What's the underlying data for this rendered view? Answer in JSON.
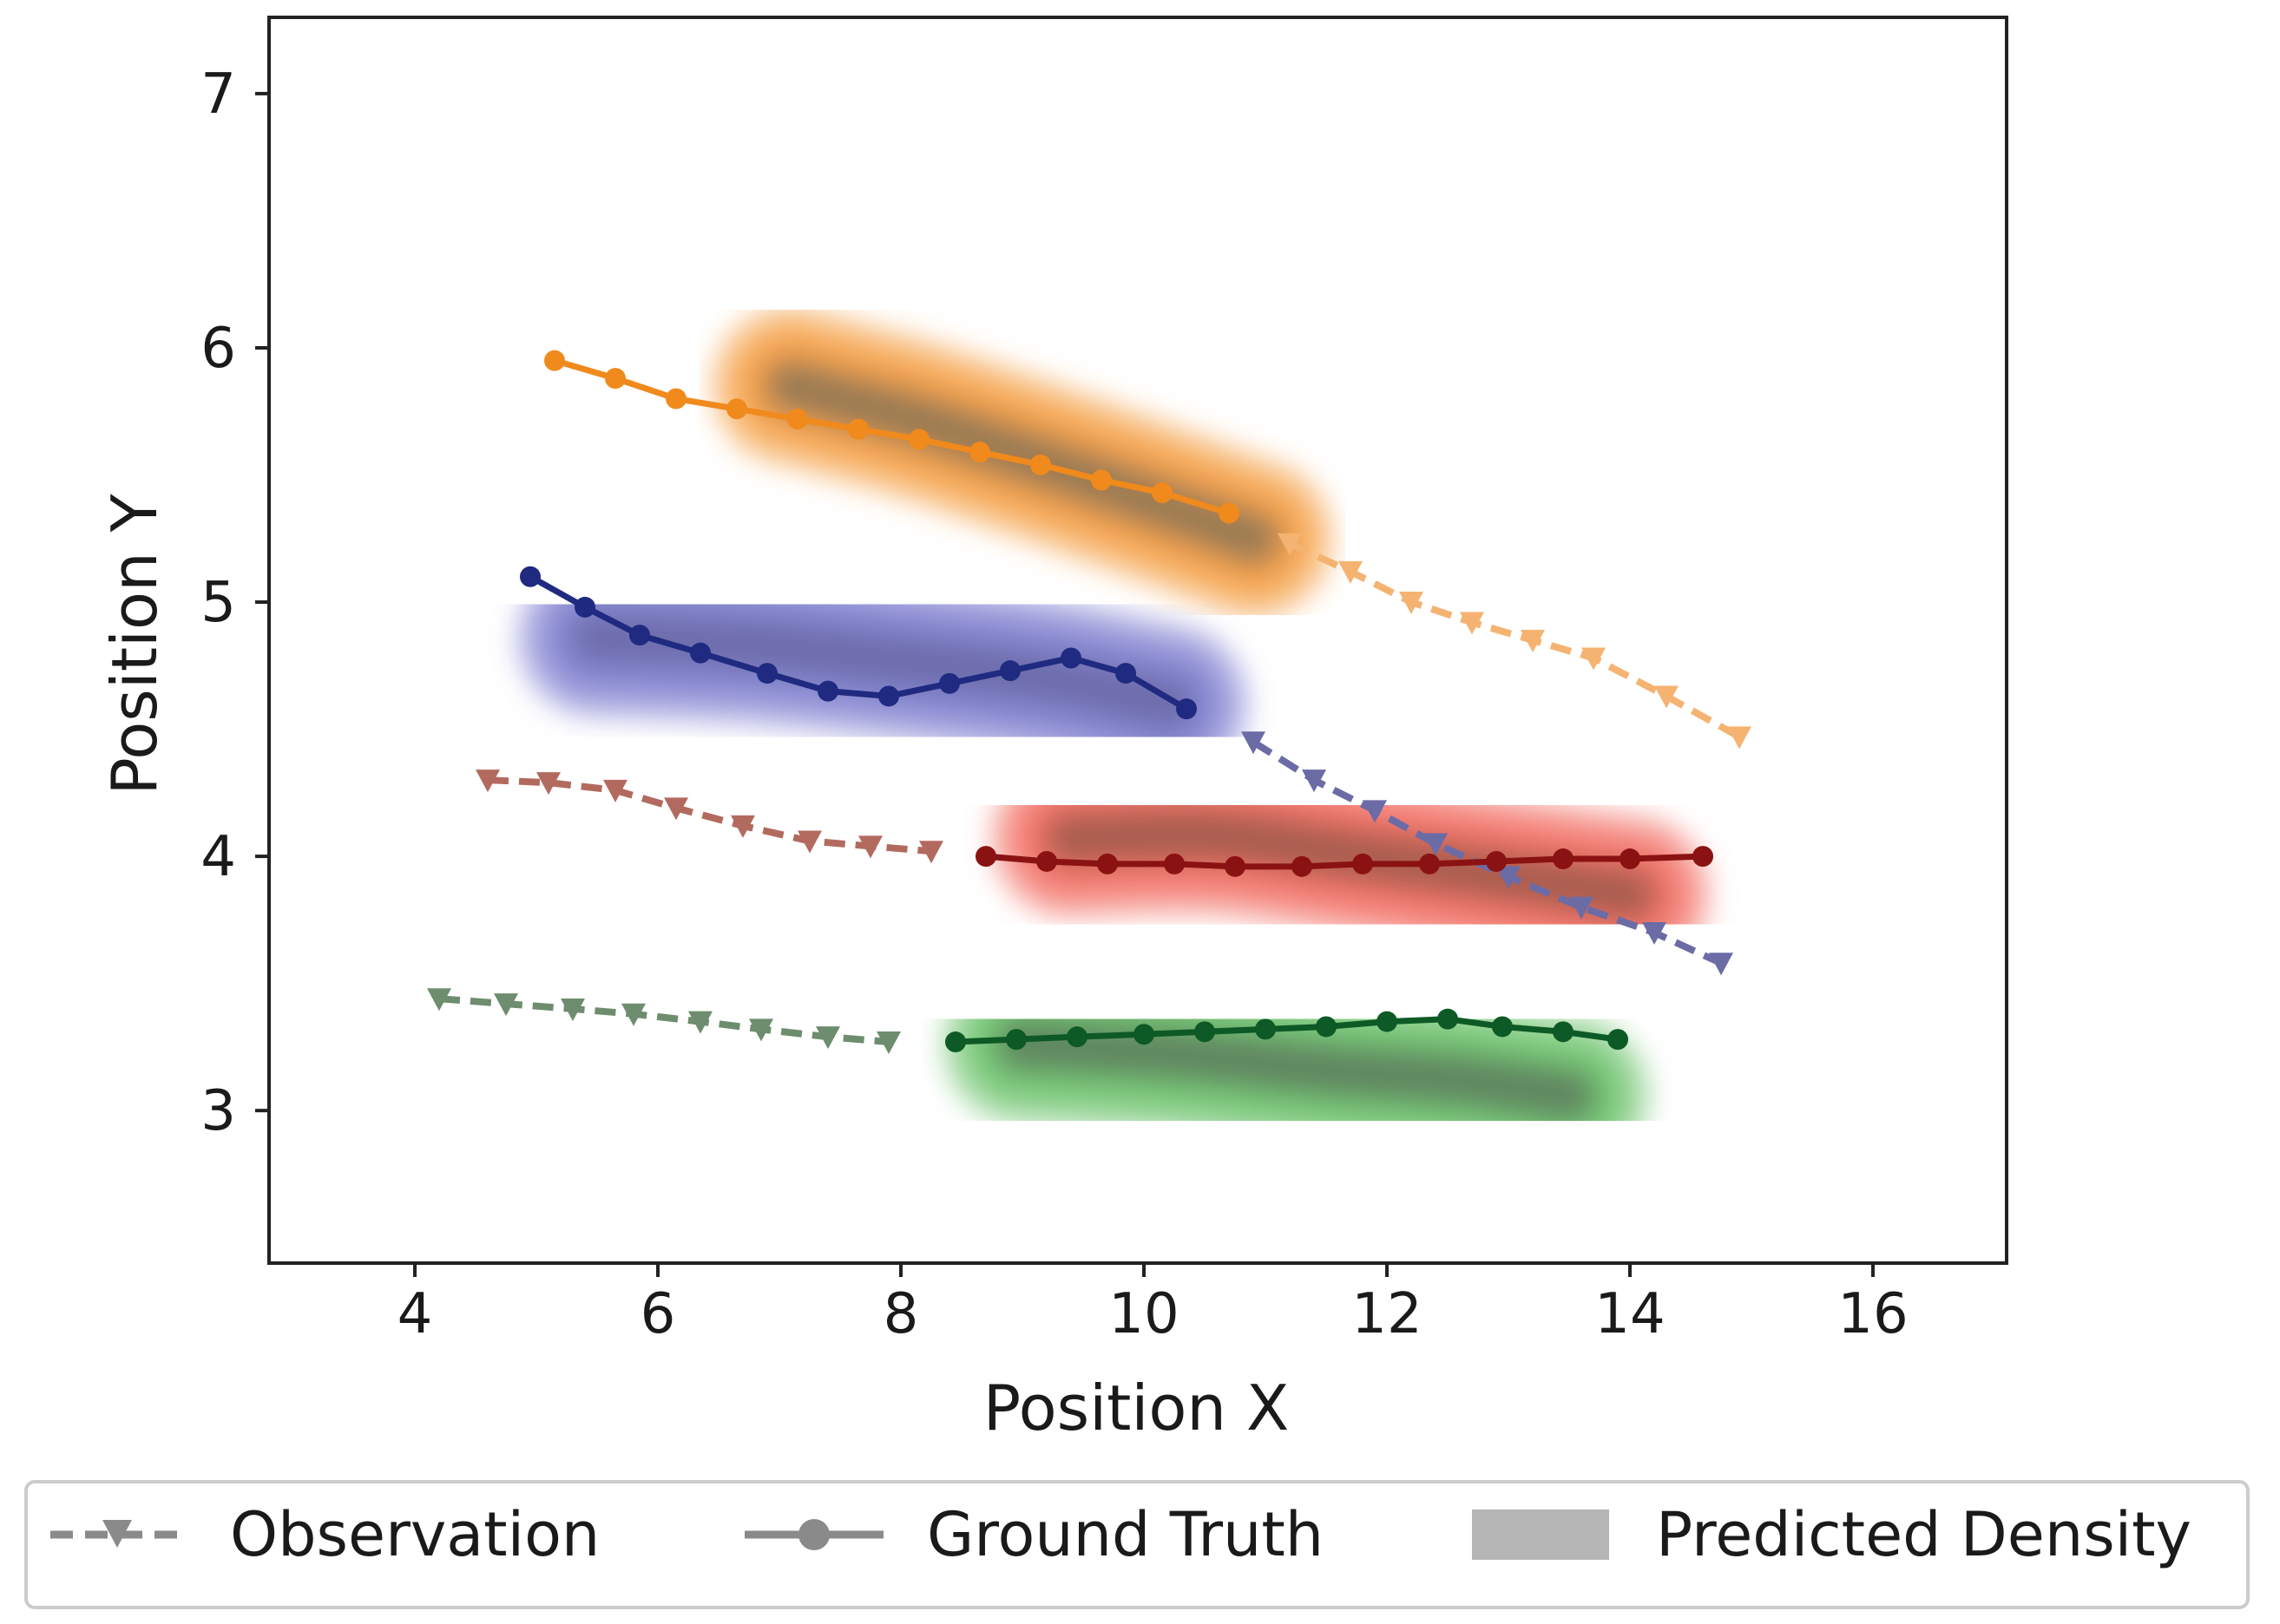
{
  "chart_data": {
    "type": "line",
    "title": "",
    "xlabel": "Position X",
    "ylabel": "Position Y",
    "xlim": [
      2.8,
      17.1
    ],
    "ylim": [
      2.4,
      7.3
    ],
    "xticks": [
      4,
      6,
      8,
      10,
      12,
      14,
      16
    ],
    "yticks": [
      3,
      4,
      5,
      6,
      7
    ],
    "grid": false,
    "legend": {
      "position": "bottom-outside",
      "entries": [
        {
          "label": "Observation",
          "style": "dashed-triangle",
          "color": "#8a8a8a"
        },
        {
          "label": "Ground Truth",
          "style": "solid-circle",
          "color": "#8a8a8a"
        },
        {
          "label": "Predicted Density",
          "style": "patch",
          "color": "#b5b5b5"
        }
      ]
    },
    "agents": [
      {
        "name": "orange",
        "obs_color": "#f5b371",
        "gt_color": "#f08a1c",
        "density_color": "#f59a3a",
        "density_dark": "#8a7455",
        "observation": {
          "x": [
            11.2,
            11.7,
            12.2,
            12.7,
            13.2,
            13.7,
            14.3,
            14.9
          ],
          "y": [
            5.23,
            5.12,
            5.0,
            4.92,
            4.85,
            4.78,
            4.63,
            4.47
          ]
        },
        "ground_truth": {
          "x": [
            5.15,
            5.65,
            6.15,
            6.65,
            7.15,
            7.65,
            8.15,
            8.65,
            9.15,
            9.65,
            10.15,
            10.7
          ],
          "y": [
            5.95,
            5.88,
            5.8,
            5.76,
            5.72,
            5.68,
            5.64,
            5.59,
            5.54,
            5.48,
            5.43,
            5.35
          ]
        },
        "density_ridge": {
          "x": [
            7.1,
            8.1,
            9.1,
            10.1,
            10.9
          ],
          "y": [
            5.85,
            5.72,
            5.56,
            5.39,
            5.25
          ]
        }
      },
      {
        "name": "blue",
        "obs_color": "#6b6ba6",
        "gt_color": "#1f2a80",
        "density_color": "#7d7dd0",
        "density_dark": "#6a6aa6",
        "observation": {
          "x": [
            10.9,
            11.4,
            11.9,
            12.4,
            13.0,
            13.6,
            14.2,
            14.75
          ],
          "y": [
            4.45,
            4.3,
            4.18,
            4.05,
            3.92,
            3.8,
            3.7,
            3.58
          ]
        },
        "ground_truth": {
          "x": [
            4.95,
            5.4,
            5.85,
            6.35,
            6.9,
            7.4,
            7.9,
            8.4,
            8.9,
            9.4,
            9.85,
            10.35
          ],
          "y": [
            5.1,
            4.98,
            4.87,
            4.8,
            4.72,
            4.65,
            4.63,
            4.68,
            4.73,
            4.78,
            4.72,
            4.58
          ]
        },
        "density_ridge": {
          "x": [
            5.5,
            6.8,
            8.0,
            9.2,
            10.2
          ],
          "y": [
            4.86,
            4.83,
            4.77,
            4.7,
            4.6
          ]
        }
      },
      {
        "name": "red",
        "obs_color": "#b36a5e",
        "gt_color": "#8b1212",
        "density_color": "#f26a5e",
        "density_dark": "#9c5a4a",
        "observation": {
          "x": [
            4.6,
            5.1,
            5.65,
            6.15,
            6.7,
            7.25,
            7.75,
            8.25
          ],
          "y": [
            4.3,
            4.29,
            4.26,
            4.19,
            4.12,
            4.06,
            4.04,
            4.02
          ]
        },
        "ground_truth": {
          "x": [
            8.7,
            9.2,
            9.7,
            10.25,
            10.75,
            11.3,
            11.8,
            12.35,
            12.9,
            13.45,
            14.0,
            14.6
          ],
          "y": [
            4.0,
            3.98,
            3.97,
            3.97,
            3.96,
            3.96,
            3.97,
            3.97,
            3.98,
            3.99,
            3.99,
            4.0
          ]
        },
        "density_ridge": {
          "x": [
            9.4,
            10.6,
            11.8,
            13.0,
            14.0
          ],
          "y": [
            4.07,
            4.08,
            4.0,
            3.92,
            3.85
          ]
        }
      },
      {
        "name": "green",
        "obs_color": "#6e8c6e",
        "gt_color": "#0d5a26",
        "density_color": "#6ac26a",
        "density_dark": "#5c7a5c",
        "observation": {
          "x": [
            4.2,
            4.75,
            5.3,
            5.8,
            6.35,
            6.85,
            7.4,
            7.9
          ],
          "y": [
            3.44,
            3.42,
            3.4,
            3.38,
            3.35,
            3.32,
            3.29,
            3.27
          ]
        },
        "ground_truth": {
          "x": [
            8.45,
            8.95,
            9.45,
            10.0,
            10.5,
            11.0,
            11.5,
            12.0,
            12.5,
            12.95,
            13.45,
            13.9
          ],
          "y": [
            3.27,
            3.28,
            3.29,
            3.3,
            3.31,
            3.32,
            3.33,
            3.35,
            3.36,
            3.33,
            3.31,
            3.28
          ]
        },
        "density_ridge": {
          "x": [
            9.0,
            10.3,
            11.5,
            12.6,
            13.5
          ],
          "y": [
            3.26,
            3.22,
            3.16,
            3.12,
            3.06
          ]
        }
      }
    ]
  }
}
